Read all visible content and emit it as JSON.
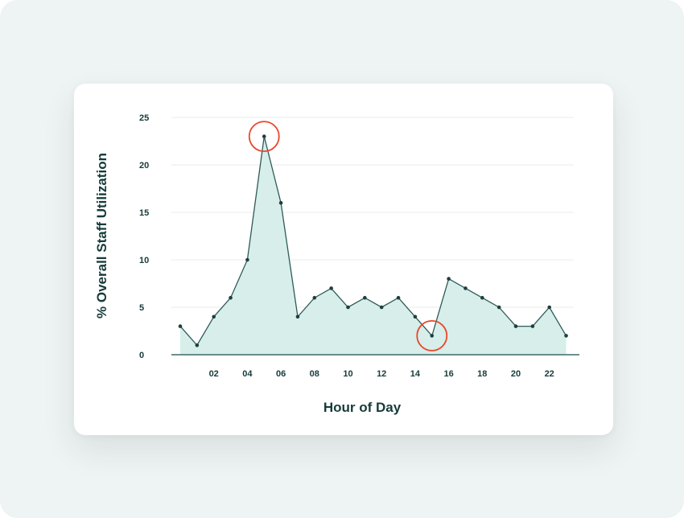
{
  "chart_data": {
    "type": "area",
    "title": "",
    "xlabel": "Hour of Day",
    "ylabel": "% Overall Staff Utilization",
    "x": [
      0,
      1,
      2,
      3,
      4,
      5,
      6,
      7,
      8,
      9,
      10,
      11,
      12,
      13,
      14,
      15,
      16,
      17,
      18,
      19,
      20,
      21,
      22,
      23
    ],
    "x_tick_values": [
      2,
      4,
      6,
      8,
      10,
      12,
      14,
      16,
      18,
      20,
      22
    ],
    "x_tick_labels": [
      "02",
      "04",
      "06",
      "08",
      "10",
      "12",
      "14",
      "16",
      "18",
      "20",
      "22"
    ],
    "series": [
      {
        "values": [
          3,
          1,
          4,
          6,
          10,
          23,
          16,
          4,
          6,
          7,
          5,
          6,
          5,
          6,
          4,
          2,
          8,
          7,
          6,
          5,
          3,
          3,
          5,
          2
        ]
      }
    ],
    "ylim": [
      0,
      25
    ],
    "y_ticks": [
      0,
      5,
      10,
      15,
      20,
      25
    ],
    "grid": true,
    "highlighted_points": [
      {
        "x": 5,
        "y": 23,
        "label": "peak"
      },
      {
        "x": 15,
        "y": 2,
        "label": "trough"
      }
    ],
    "colors": {
      "area_fill": "#d7eeea",
      "line": "#2f5a58",
      "highlight": "#e8472c",
      "text": "#173a3a",
      "grid": "#e7eded",
      "axis": "#3f6a68"
    }
  }
}
